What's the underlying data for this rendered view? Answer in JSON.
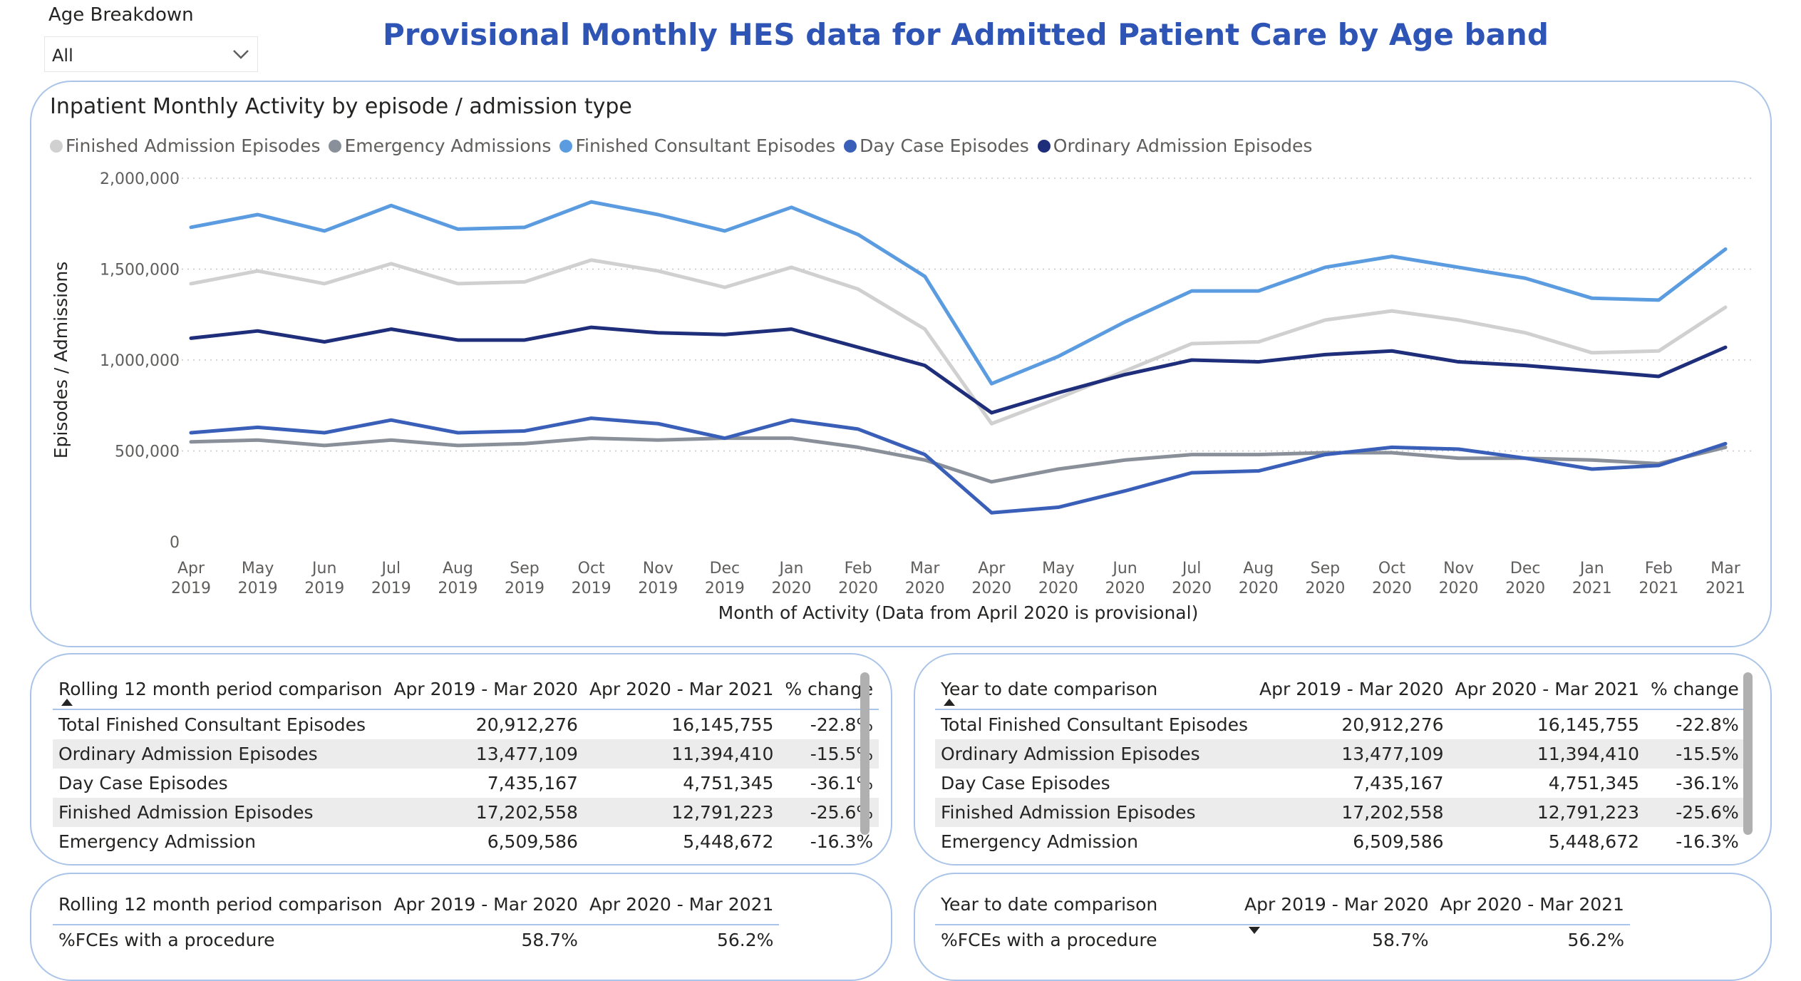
{
  "slicer": {
    "label": "Age Breakdown",
    "value": "All"
  },
  "report_title": "Provisional Monthly HES data for Admitted Patient Care by Age band",
  "chart": {
    "title": "Inpatient Monthly Activity by episode / admission type",
    "legend": [
      {
        "name": "Finished Admission Episodes",
        "color": "#d0d0d0"
      },
      {
        "name": "Emergency Admissions",
        "color": "#8a9099"
      },
      {
        "name": "Finished Consultant Episodes",
        "color": "#5b9be0"
      },
      {
        "name": "Day Case Episodes",
        "color": "#3a5fb8"
      },
      {
        "name": "Ordinary Admission Episodes",
        "color": "#1f2e7a"
      }
    ]
  },
  "chart_data": {
    "type": "line",
    "title": "Inpatient Monthly Activity by episode / admission type",
    "xlabel": "Month of Activity (Data from April 2020 is provisional)",
    "ylabel": "Episodes / Admissions",
    "ylim": [
      0,
      2000000
    ],
    "y_ticks": [
      "2,000,000",
      "1,500,000",
      "1,000,000",
      "500,000",
      "0"
    ],
    "y_tick_values": [
      2000000,
      1500000,
      1000000,
      500000,
      0
    ],
    "grid": true,
    "legend_position": "top-left",
    "x": [
      [
        "Apr",
        "2019"
      ],
      [
        "May",
        "2019"
      ],
      [
        "Jun",
        "2019"
      ],
      [
        "Jul",
        "2019"
      ],
      [
        "Aug",
        "2019"
      ],
      [
        "Sep",
        "2019"
      ],
      [
        "Oct",
        "2019"
      ],
      [
        "Nov",
        "2019"
      ],
      [
        "Dec",
        "2019"
      ],
      [
        "Jan",
        "2020"
      ],
      [
        "Feb",
        "2020"
      ],
      [
        "Mar",
        "2020"
      ],
      [
        "Apr",
        "2020"
      ],
      [
        "May",
        "2020"
      ],
      [
        "Jun",
        "2020"
      ],
      [
        "Jul",
        "2020"
      ],
      [
        "Aug",
        "2020"
      ],
      [
        "Sep",
        "2020"
      ],
      [
        "Oct",
        "2020"
      ],
      [
        "Nov",
        "2020"
      ],
      [
        "Dec",
        "2020"
      ],
      [
        "Jan",
        "2021"
      ],
      [
        "Feb",
        "2021"
      ],
      [
        "Mar",
        "2021"
      ]
    ],
    "series": [
      {
        "name": "Finished Admission Episodes",
        "color": "#d0d0d0",
        "values": [
          1420000,
          1490000,
          1420000,
          1530000,
          1420000,
          1430000,
          1550000,
          1490000,
          1400000,
          1510000,
          1390000,
          1170000,
          650000,
          790000,
          940000,
          1090000,
          1100000,
          1220000,
          1270000,
          1220000,
          1150000,
          1040000,
          1050000,
          1290000
        ]
      },
      {
        "name": "Emergency Admissions",
        "color": "#8a9099",
        "values": [
          550000,
          560000,
          530000,
          560000,
          530000,
          540000,
          570000,
          560000,
          570000,
          570000,
          520000,
          450000,
          330000,
          400000,
          450000,
          480000,
          480000,
          490000,
          490000,
          460000,
          460000,
          450000,
          430000,
          520000
        ]
      },
      {
        "name": "Finished Consultant Episodes",
        "color": "#5b9be0",
        "values": [
          1730000,
          1800000,
          1710000,
          1850000,
          1720000,
          1730000,
          1870000,
          1800000,
          1710000,
          1840000,
          1690000,
          1460000,
          870000,
          1020000,
          1210000,
          1380000,
          1380000,
          1510000,
          1570000,
          1510000,
          1450000,
          1340000,
          1330000,
          1610000
        ]
      },
      {
        "name": "Day Case Episodes",
        "color": "#3a5fb8",
        "values": [
          600000,
          630000,
          600000,
          670000,
          600000,
          610000,
          680000,
          650000,
          570000,
          670000,
          620000,
          480000,
          160000,
          190000,
          280000,
          380000,
          390000,
          480000,
          520000,
          510000,
          460000,
          400000,
          420000,
          540000
        ]
      },
      {
        "name": "Ordinary Admission Episodes",
        "color": "#1f2e7a",
        "values": [
          1120000,
          1160000,
          1100000,
          1170000,
          1110000,
          1110000,
          1180000,
          1150000,
          1140000,
          1170000,
          1070000,
          970000,
          710000,
          820000,
          920000,
          1000000,
          990000,
          1030000,
          1050000,
          990000,
          970000,
          940000,
          910000,
          1070000
        ]
      }
    ]
  },
  "table_rolling": {
    "headers": [
      "Rolling 12 month period comparison",
      "Apr 2019 - Mar 2020",
      "Apr 2020 - Mar 2021",
      "% change"
    ],
    "rows": [
      [
        "Total Finished Consultant Episodes",
        "20,912,276",
        "16,145,755",
        "-22.8%"
      ],
      [
        "Ordinary Admission Episodes",
        "13,477,109",
        "11,394,410",
        "-15.5%"
      ],
      [
        "Day Case Episodes",
        "7,435,167",
        "4,751,345",
        "-36.1%"
      ],
      [
        "Finished Admission Episodes",
        "17,202,558",
        "12,791,223",
        "-25.6%"
      ],
      [
        "Emergency Admission",
        "6,509,586",
        "5,448,672",
        "-16.3%"
      ]
    ]
  },
  "table_ytd": {
    "headers": [
      "Year to date comparison",
      "Apr 2019 - Mar 2020",
      "Apr 2020 - Mar 2021",
      "% change"
    ],
    "rows": [
      [
        "Total Finished Consultant Episodes",
        "20,912,276",
        "16,145,755",
        "-22.8%"
      ],
      [
        "Ordinary Admission Episodes",
        "13,477,109",
        "11,394,410",
        "-15.5%"
      ],
      [
        "Day Case Episodes",
        "7,435,167",
        "4,751,345",
        "-36.1%"
      ],
      [
        "Finished Admission Episodes",
        "17,202,558",
        "12,791,223",
        "-25.6%"
      ],
      [
        "Emergency Admission",
        "6,509,586",
        "5,448,672",
        "-16.3%"
      ]
    ]
  },
  "proc_rolling": {
    "headers": [
      "Rolling 12 month period comparison",
      "Apr 2019 - Mar 2020",
      "Apr 2020 - Mar 2021"
    ],
    "rows": [
      [
        "%FCEs with a procedure",
        "58.7%",
        "56.2%"
      ]
    ]
  },
  "proc_ytd": {
    "headers": [
      "Year to date comparison",
      "Apr 2019 - Mar 2020",
      "Apr 2020 - Mar 2021"
    ],
    "rows": [
      [
        "%FCEs with a procedure",
        "58.7%",
        "56.2%"
      ]
    ]
  }
}
